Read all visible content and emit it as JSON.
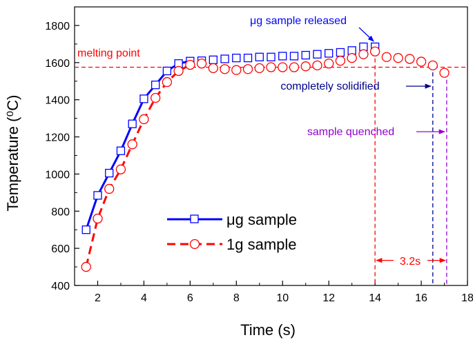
{
  "chart_data": {
    "type": "scatter",
    "title": "",
    "xlabel": "Time (s)",
    "ylabel": "Temperature (⁰C)",
    "xlim": [
      1,
      18
    ],
    "ylim": [
      400,
      1900
    ],
    "xticks": [
      2,
      4,
      6,
      8,
      10,
      12,
      14,
      16,
      18
    ],
    "yticks": [
      400,
      600,
      800,
      1000,
      1200,
      1400,
      1600,
      1800
    ],
    "grid": false,
    "legend_position": "bottom-center",
    "series": [
      {
        "name": "μg sample",
        "color": "#0000ff",
        "marker": "square",
        "line": "solid",
        "x": [
          1.5,
          2.0,
          2.5,
          3.0,
          3.5,
          4.0,
          4.5,
          5.0,
          5.5,
          6.0,
          6.5,
          7.0,
          7.5,
          8.0,
          8.5,
          9.0,
          9.5,
          10.0,
          10.5,
          11.0,
          11.5,
          12.0,
          12.5,
          13.0,
          13.5,
          14.0
        ],
        "values": [
          700,
          885,
          1005,
          1125,
          1270,
          1405,
          1480,
          1555,
          1595,
          1608,
          1610,
          1615,
          1620,
          1625,
          1625,
          1630,
          1630,
          1635,
          1635,
          1640,
          1645,
          1650,
          1655,
          1665,
          1685,
          1685
        ],
        "line_x": [
          1.5,
          2.0,
          2.5,
          3.0,
          3.5,
          4.0,
          4.5,
          5.0,
          5.5,
          6.0
        ],
        "line_values": [
          700,
          885,
          1005,
          1125,
          1270,
          1405,
          1480,
          1555,
          1595,
          1608
        ]
      },
      {
        "name": "1g sample",
        "color": "#ff0000",
        "marker": "circle",
        "line": "dashed",
        "x": [
          1.5,
          2.0,
          2.5,
          3.0,
          3.5,
          4.0,
          4.5,
          5.0,
          5.5,
          6.0,
          6.5,
          7.0,
          7.5,
          8.0,
          8.5,
          9.0,
          9.5,
          10.0,
          10.5,
          11.0,
          11.5,
          12.0,
          12.5,
          13.0,
          13.5,
          14.0,
          14.5,
          15.0,
          15.5,
          16.0,
          16.5,
          17.0
        ],
        "values": [
          500,
          760,
          920,
          1025,
          1160,
          1295,
          1410,
          1495,
          1555,
          1588,
          1595,
          1570,
          1565,
          1560,
          1565,
          1570,
          1575,
          1575,
          1575,
          1580,
          1585,
          1595,
          1610,
          1625,
          1645,
          1660,
          1630,
          1625,
          1620,
          1605,
          1585,
          1545
        ],
        "line_x": [
          1.5,
          2.0,
          2.5,
          3.0,
          3.5,
          4.0,
          4.5,
          5.0,
          5.5,
          6.0
        ],
        "line_values": [
          500,
          760,
          920,
          1025,
          1160,
          1295,
          1410,
          1495,
          1555,
          1588
        ]
      }
    ],
    "reference_lines": [
      {
        "orientation": "horizontal",
        "value": 1575,
        "color": "#ff0000",
        "label": "melting point"
      },
      {
        "orientation": "vertical",
        "value": 14.0,
        "color": "#ff0000"
      },
      {
        "orientation": "vertical",
        "value": 16.5,
        "color": "#00008b"
      },
      {
        "orientation": "vertical",
        "value": 17.1,
        "color": "#9400d3"
      }
    ],
    "annotations": {
      "released": {
        "text": "μg sample released",
        "color": "#0000ff",
        "target": [
          14.0,
          1685
        ]
      },
      "solidified": {
        "text": "completely solidified",
        "color": "#00008b",
        "target": [
          16.5,
          1430
        ]
      },
      "quenched": {
        "text": "sample quenched",
        "color": "#9400d3",
        "target": [
          17.1,
          1215
        ]
      },
      "interval": {
        "text": "3.2s",
        "color": "#ff0000",
        "from": 14.0,
        "to": 17.1,
        "y": 535
      }
    }
  }
}
